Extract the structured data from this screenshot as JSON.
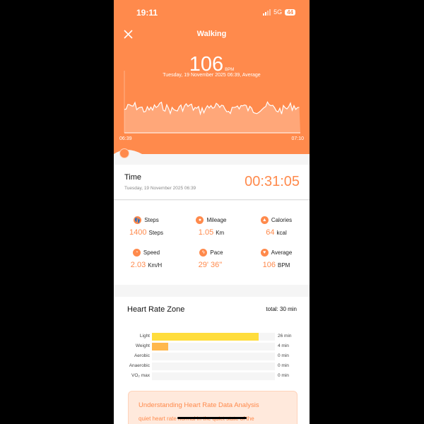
{
  "status": {
    "time": "19:11",
    "network": "5G",
    "battery": "44"
  },
  "header": {
    "title": "Walking",
    "bpm": "106",
    "bpm_unit": "BPM",
    "date_line": "Tuesday, 19 November 2025 06:39, Average",
    "chart_start": "06:39",
    "chart_end": "07:10"
  },
  "time_card": {
    "label": "Time",
    "date": "Tuesday, 19 November 2025 06:39",
    "duration": "00:31:05"
  },
  "metrics": [
    {
      "label": "Steps",
      "value": "1400",
      "unit": "Steps",
      "icon": "footprint-icon"
    },
    {
      "label": "Mileage",
      "value": "1.05",
      "unit": "Km",
      "icon": "location-pin-icon"
    },
    {
      "label": "Calories",
      "value": "64",
      "unit": "kcal",
      "icon": "flame-icon"
    },
    {
      "label": "Speed",
      "value": "2.03",
      "unit": "Km/H",
      "icon": "speed-icon"
    },
    {
      "label": "Pace",
      "value": "29' 36''",
      "unit": "",
      "icon": "lightning-icon"
    },
    {
      "label": "Average",
      "value": "106",
      "unit": "BPM",
      "icon": "heart-icon"
    }
  ],
  "zone": {
    "title": "Heart Rate Zone",
    "total": "total: 30 min",
    "total_minutes": 30,
    "rows": [
      {
        "label": "Light",
        "value": "26 min",
        "minutes": 26,
        "color": "#FFDD3C"
      },
      {
        "label": "Weight",
        "value": "4 min",
        "minutes": 4,
        "color": "#FFB84D"
      },
      {
        "label": "Aerobic",
        "value": "0 min",
        "minutes": 0,
        "color": "#FF9A4C"
      },
      {
        "label": "Anaerobic",
        "value": "0 min",
        "minutes": 0,
        "color": "#FF7A4C"
      },
      {
        "label": "VO₂ max",
        "value": "0 min",
        "minutes": 0,
        "color": "#FF5A4C"
      }
    ]
  },
  "analysis": {
    "title": "Understanding Heart Rate Data Analysis",
    "text": "quiet heart rate normal in the quiet state of the"
  },
  "colors": {
    "accent": "#FF8A4C"
  }
}
